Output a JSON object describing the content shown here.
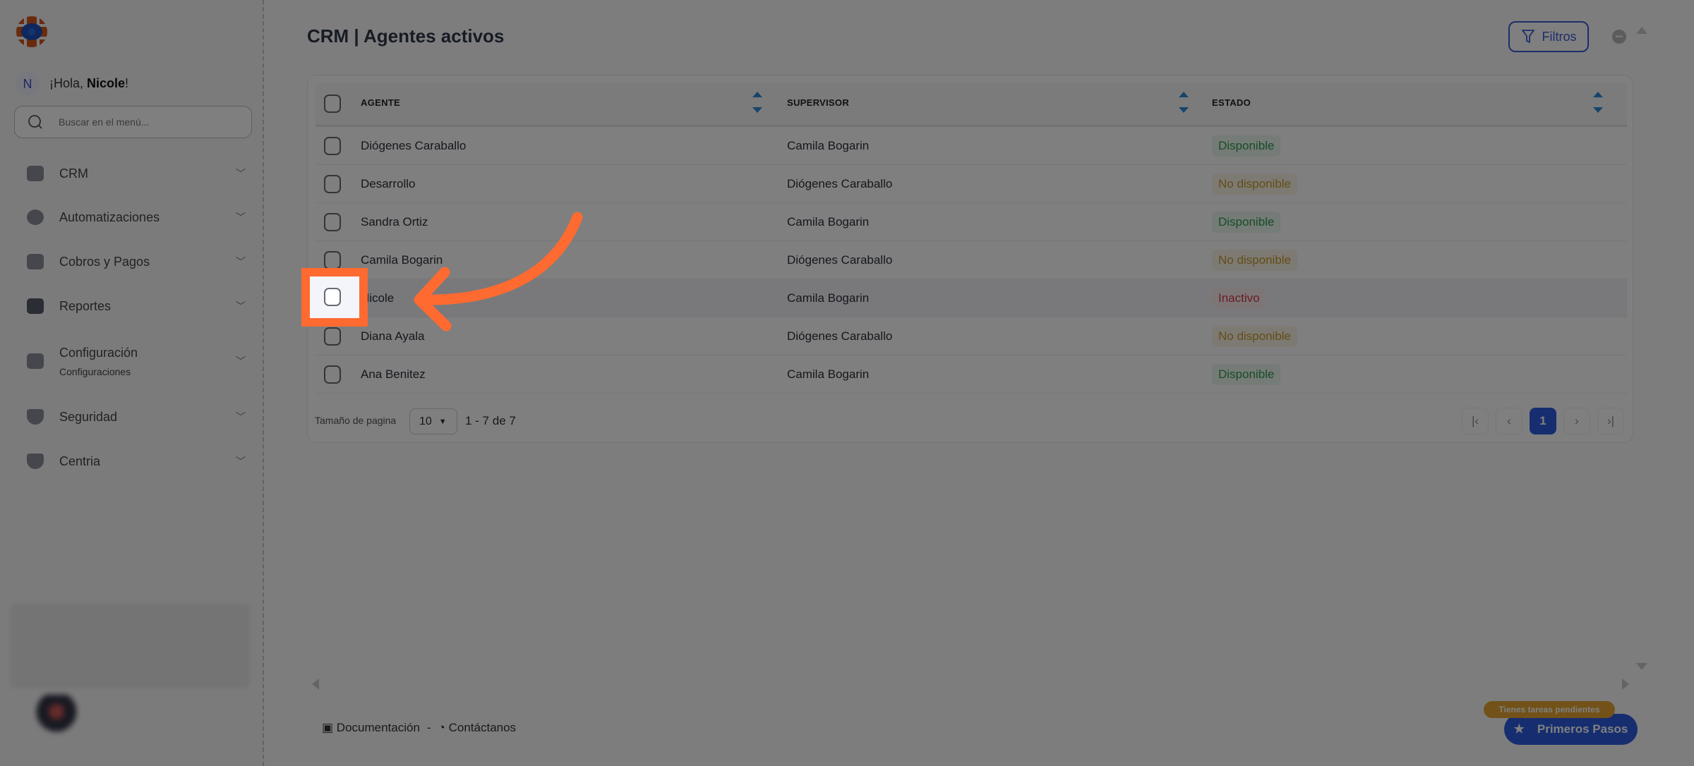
{
  "sidebar": {
    "avatar_initial": "N",
    "greeting_prefix": "¡Hola, ",
    "user_name": "Nicole",
    "greeting_suffix": "!",
    "search_placeholder": "Buscar en el menú...",
    "items": [
      {
        "label": "CRM",
        "icon": "document-icon"
      },
      {
        "label": "Automatizaciones",
        "icon": "hexagon-icon"
      },
      {
        "label": "Cobros y Pagos",
        "icon": "id-card-icon"
      },
      {
        "label": "Reportes",
        "icon": "wallet-icon"
      },
      {
        "label": "Configuración",
        "sublabel": "Configuraciones",
        "icon": "book-icon"
      },
      {
        "label": "Seguridad",
        "icon": "shield-icon"
      },
      {
        "label": "Centria",
        "icon": "shield-icon"
      }
    ]
  },
  "header": {
    "title": "CRM | Agentes activos",
    "filter_label": "Filtros"
  },
  "table": {
    "columns": [
      "AGENTE",
      "SUPERVISOR",
      "ESTADO"
    ],
    "rows": [
      {
        "agente": "Diógenes Caraballo",
        "supervisor": "Camila Bogarin",
        "estado": "Disponible",
        "status": "disponible"
      },
      {
        "agente": "Desarrollo",
        "supervisor": "Diógenes Caraballo",
        "estado": "No disponible",
        "status": "nodisponible"
      },
      {
        "agente": "Sandra Ortiz",
        "supervisor": "Camila Bogarin",
        "estado": "Disponible",
        "status": "disponible"
      },
      {
        "agente": "Camila Bogarin",
        "supervisor": "Diógenes Caraballo",
        "estado": "No disponible",
        "status": "nodisponible"
      },
      {
        "agente": "Nicole",
        "supervisor": "Camila Bogarin",
        "estado": "Inactivo",
        "status": "inactivo"
      },
      {
        "agente": "Diana Ayala",
        "supervisor": "Diógenes Caraballo",
        "estado": "No disponible",
        "status": "nodisponible"
      },
      {
        "agente": "Ana Benitez",
        "supervisor": "Camila Bogarin",
        "estado": "Disponible",
        "status": "disponible"
      }
    ]
  },
  "pagination": {
    "size_label": "Tamaño de pagina",
    "size_value": "10",
    "count": "1 - 7 de 7",
    "current_page": "1"
  },
  "footer": {
    "docs": "Documentación",
    "separator": "-",
    "contact": "Contáctanos"
  },
  "onboarding": {
    "badge": "Tienes tareas pendientes",
    "button": "Primeros Pasos"
  },
  "colors": {
    "accent": "#2d5ce0",
    "highlight": "#ff6a30",
    "disponible": "#2e9a4c",
    "no_disponible": "#c49a2a",
    "inactivo": "#d03848",
    "badge": "#e5a431"
  }
}
